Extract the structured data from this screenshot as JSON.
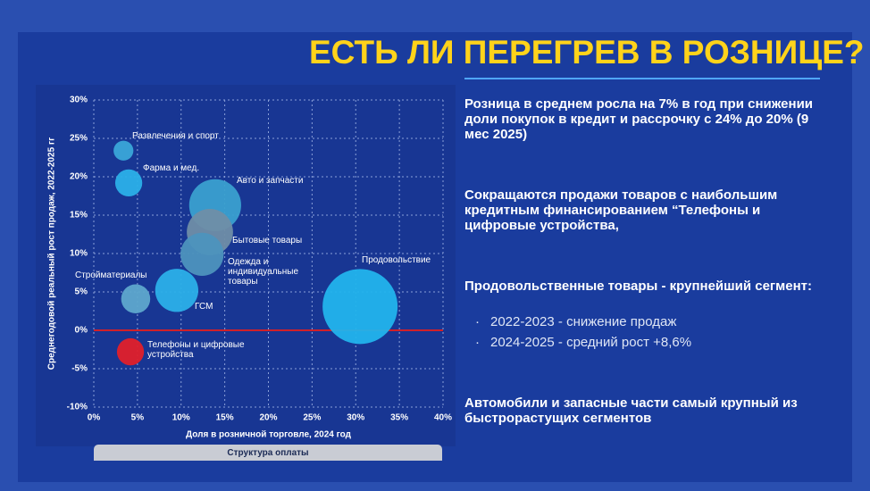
{
  "slide": {
    "title": "ЕСТЬ ЛИ ПЕРЕГРЕВ В РОЗНИЦЕ?",
    "paragraphs": [
      "Розница в среднем росла на 7% в год при снижении доли покупок в кредит и рассрочку с 24% до 20% (9 мес 2025)",
      "Сокращаются продажи товаров с наибольшим кредитным финансированием “Телефоны и цифровые устройства,",
      "Продовольственные товары - крупнейший сегмент:",
      "Автомобили и запасные части самый крупный из быстрорастущих сегментов"
    ],
    "bullets": [
      "2022-2023 - снижение продаж",
      "2024-2025 - средний рост +8,6%"
    ],
    "tab": "Структура оплаты"
  },
  "chart_data": {
    "type": "bubble",
    "x_label": "Доля в розничной торговле, 2024 год",
    "y_label": "Среднегодовой реальный рост  продаж, 2022-2025 гг",
    "labels": [
      "Развлечения и спорт",
      "Фарма и мед.",
      "Авто и запчасти",
      "Бытовые товары",
      "Одежда и индивидуальные товары",
      "Стройматериалы",
      "ГСМ",
      "Продовольствие",
      "Телефоны и цифровые устройства"
    ],
    "x": [
      3.4,
      4.0,
      13.9,
      13.3,
      12.4,
      4.8,
      9.5,
      30.5,
      4.2
    ],
    "y": [
      23.4,
      19.2,
      16.3,
      12.8,
      9.9,
      4.1,
      5.2,
      3.1,
      -2.8
    ],
    "sizes": [
      7,
      13,
      48,
      38,
      33,
      15,
      33,
      100,
      13
    ],
    "colors": [
      "#3aa6d8",
      "#2bb0e8",
      "#3aa0cf",
      "#6f8ea6",
      "#4d93bd",
      "#5ea8cc",
      "#2bb0e8",
      "#22b4ec",
      "#e0202a"
    ],
    "xlim": [
      0,
      40
    ],
    "ylim": [
      -10,
      30
    ],
    "xticks": [
      {
        "value": 0,
        "label": "0%"
      },
      {
        "value": 5,
        "label": "5%"
      },
      {
        "value": 10,
        "label": "10%"
      },
      {
        "value": 15,
        "label": "15%"
      },
      {
        "value": 20,
        "label": "20%"
      },
      {
        "value": 25,
        "label": "25%"
      },
      {
        "value": 30,
        "label": "30%"
      },
      {
        "value": 35,
        "label": "35%"
      },
      {
        "value": 40,
        "label": "40%"
      }
    ],
    "yticks": [
      {
        "value": -10,
        "label": "-10%"
      },
      {
        "value": -5,
        "label": "-5%"
      },
      {
        "value": 0,
        "label": "0%"
      },
      {
        "value": 5,
        "label": "5%"
      },
      {
        "value": 10,
        "label": "10%"
      },
      {
        "value": 15,
        "label": "15%"
      },
      {
        "value": 20,
        "label": "20%"
      },
      {
        "value": 25,
        "label": "25%"
      },
      {
        "value": 30,
        "label": "30%"
      }
    ],
    "grid": true,
    "zero_line": {
      "value": 0,
      "color": "#d0202a"
    }
  }
}
